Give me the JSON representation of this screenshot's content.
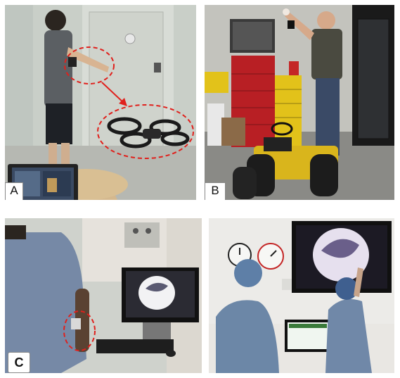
{
  "figure": {
    "panels": [
      {
        "label": "A",
        "description_icon": "drone-gesture-icon"
      },
      {
        "label": "B",
        "description_icon": "ground-robot-gesture-icon"
      },
      {
        "label": "C",
        "description_icon": "surgical-gesture-icon"
      }
    ]
  },
  "colors": {
    "annotation": "#e0201c",
    "background": "#ffffff"
  }
}
